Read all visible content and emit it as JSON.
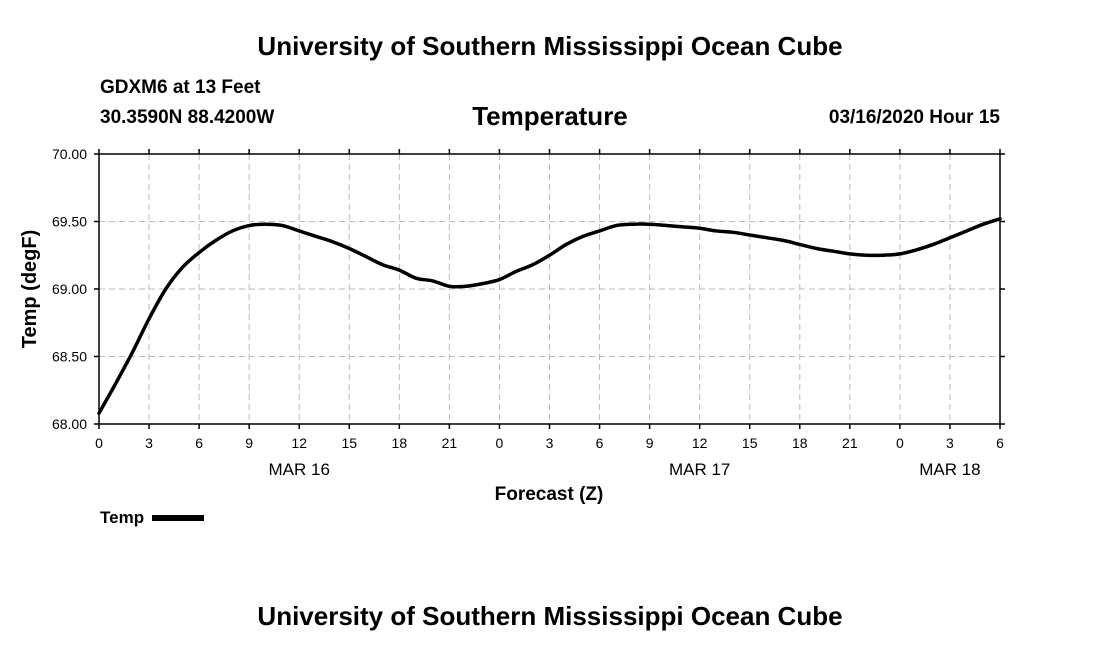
{
  "header": {
    "title": "University of Southern Mississippi Ocean Cube",
    "station": "GDXM6 at 13 Feet",
    "location": "30.3590N 88.4200W",
    "timestamp": "03/16/2020 Hour 15"
  },
  "footer": {
    "title": "University of Southern Mississippi Ocean Cube"
  },
  "legend": {
    "label": "Temp"
  },
  "chart_data": {
    "type": "line",
    "title": "Temperature",
    "xlabel": "Forecast (Z)",
    "ylabel": "Temp (degF)",
    "ylim": [
      68.0,
      70.0
    ],
    "yticks": [
      "68.00",
      "68.50",
      "69.00",
      "69.50",
      "70.00"
    ],
    "xlim": [
      0,
      54
    ],
    "xticks": [
      0,
      3,
      6,
      9,
      12,
      15,
      18,
      21,
      24,
      27,
      30,
      33,
      36,
      39,
      42,
      45,
      48,
      51,
      54
    ],
    "xtick_labels": [
      "0",
      "3",
      "6",
      "9",
      "12",
      "15",
      "18",
      "21",
      "0",
      "3",
      "6",
      "9",
      "12",
      "15",
      "18",
      "21",
      "0",
      "3",
      "6"
    ],
    "date_labels": [
      {
        "hour": 12,
        "label": "MAR 16"
      },
      {
        "hour": 36,
        "label": "MAR 17"
      },
      {
        "hour": 51,
        "label": "MAR 18"
      }
    ],
    "grid": true,
    "series": [
      {
        "name": "Temp",
        "color": "#000000",
        "x": [
          0,
          1,
          2,
          3,
          4,
          5,
          6,
          7,
          8,
          9,
          10,
          11,
          12,
          13,
          14,
          15,
          16,
          17,
          18,
          19,
          20,
          21,
          22,
          23,
          24,
          25,
          26,
          27,
          28,
          29,
          30,
          31,
          32,
          33,
          34,
          35,
          36,
          37,
          38,
          39,
          40,
          41,
          42,
          43,
          44,
          45,
          46,
          47,
          48,
          49,
          50,
          51,
          52,
          53,
          54
        ],
        "values": [
          68.08,
          68.3,
          68.53,
          68.78,
          69.0,
          69.16,
          69.27,
          69.36,
          69.43,
          69.47,
          69.48,
          69.47,
          69.43,
          69.39,
          69.35,
          69.3,
          69.24,
          69.18,
          69.14,
          69.08,
          69.06,
          69.02,
          69.02,
          69.04,
          69.07,
          69.13,
          69.18,
          69.25,
          69.33,
          69.39,
          69.43,
          69.47,
          69.48,
          69.48,
          69.47,
          69.46,
          69.45,
          69.43,
          69.42,
          69.4,
          69.38,
          69.36,
          69.33,
          69.3,
          69.28,
          69.26,
          69.25,
          69.25,
          69.26,
          69.29,
          69.33,
          69.38,
          69.43,
          69.48,
          69.52
        ]
      }
    ]
  }
}
